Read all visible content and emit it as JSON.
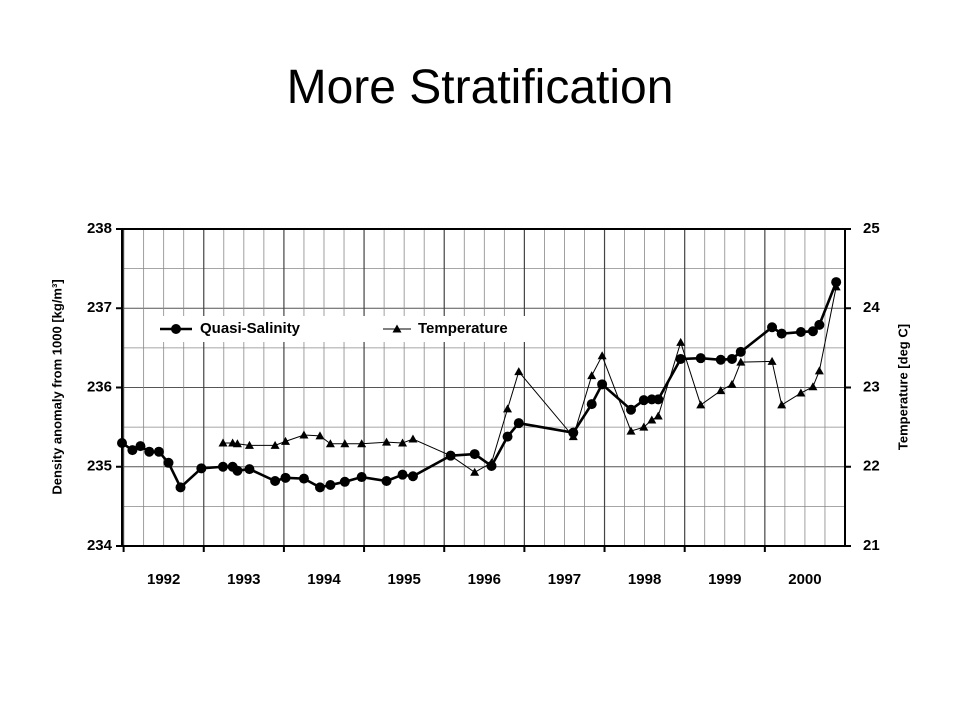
{
  "title": "More Stratification",
  "chart_data": {
    "type": "line",
    "ylabel": "Density anomaly from 1000 [kg/m³]",
    "y2label": "Temperature [deg C]",
    "x": [
      1991.98,
      1992.11,
      1992.21,
      1992.32,
      1992.44,
      1992.56,
      1992.71,
      1992.97,
      1993.24,
      1993.36,
      1993.42,
      1993.57,
      1993.89,
      1994.02,
      1994.25,
      1994.45,
      1994.58,
      1994.76,
      1994.97,
      1995.28,
      1995.48,
      1995.61,
      1996.08,
      1996.38,
      1996.59,
      1996.79,
      1996.93,
      1997.61,
      1997.84,
      1997.97,
      1998.33,
      1998.49,
      1998.59,
      1998.67,
      1998.95,
      1999.2,
      1999.45,
      1999.59,
      1999.7,
      2000.09,
      2000.21,
      2000.45,
      2000.6,
      2000.68,
      2000.89
    ],
    "series": [
      {
        "name": "Quasi-Salinity",
        "color": "#000000",
        "marker": "circle",
        "values": [
          235.3,
          235.21,
          235.26,
          235.19,
          235.19,
          235.05,
          234.74,
          234.98,
          235.0,
          235.0,
          234.95,
          234.97,
          234.82,
          234.86,
          234.85,
          234.74,
          234.77,
          234.81,
          234.87,
          234.82,
          234.9,
          234.88,
          235.14,
          235.16,
          235.01,
          235.38,
          235.55,
          235.43,
          235.79,
          236.04,
          235.72,
          235.84,
          235.85,
          235.85,
          236.36,
          236.37,
          236.35,
          236.36,
          236.45,
          236.76,
          236.68,
          236.7,
          236.71,
          236.79,
          237.33
        ]
      },
      {
        "name": "Temperature",
        "color": "#000000",
        "marker": "triangle",
        "axis": "y2",
        "values": [
          null,
          null,
          null,
          null,
          null,
          null,
          null,
          null,
          22.3,
          22.3,
          22.29,
          22.27,
          22.27,
          22.32,
          22.4,
          22.39,
          22.29,
          22.29,
          22.29,
          22.31,
          22.3,
          22.35,
          22.14,
          21.93,
          22.05,
          22.73,
          23.2,
          22.38,
          23.15,
          23.4,
          22.45,
          22.5,
          22.59,
          22.64,
          23.57,
          22.78,
          22.96,
          23.04,
          23.32,
          23.33,
          22.78,
          22.93,
          23.01,
          23.21,
          24.27
        ]
      }
    ],
    "xlim": [
      1991.98,
      2001
    ],
    "xticks": [
      {
        "value": 1992.5,
        "label": "1992"
      },
      {
        "value": 1993.5,
        "label": "1993"
      },
      {
        "value": 1994.5,
        "label": "1994"
      },
      {
        "value": 1995.5,
        "label": "1995"
      },
      {
        "value": 1996.5,
        "label": "1996"
      },
      {
        "value": 1997.5,
        "label": "1997"
      },
      {
        "value": 1998.5,
        "label": "1998"
      },
      {
        "value": 1999.5,
        "label": "1999"
      },
      {
        "value": 2000.5,
        "label": "2000"
      }
    ],
    "ylim": [
      234,
      238
    ],
    "yticks": [
      234,
      235,
      236,
      237,
      238
    ],
    "y2lim": [
      21,
      25
    ],
    "y2ticks": [
      21,
      22,
      23,
      24,
      25
    ],
    "grid": true,
    "legend": "upper left"
  }
}
